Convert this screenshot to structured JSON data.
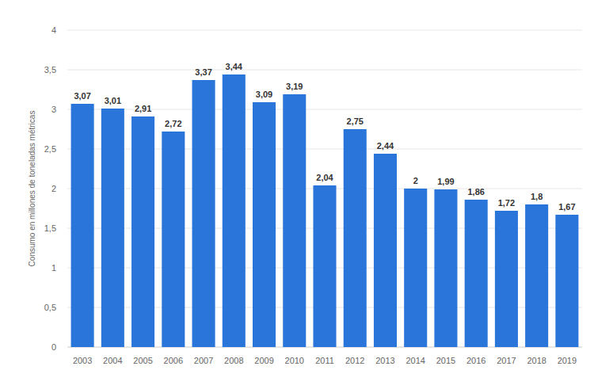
{
  "chart_data": {
    "type": "bar",
    "y_label": "Consumo en millones de toneladas métricas",
    "categories": [
      "2003",
      "2004",
      "2005",
      "2006",
      "2007",
      "2008",
      "2009",
      "2010",
      "2011",
      "2012",
      "2013",
      "2014",
      "2015",
      "2016",
      "2017",
      "2018",
      "2019"
    ],
    "values": [
      3.07,
      3.01,
      2.91,
      2.72,
      3.37,
      3.44,
      3.09,
      3.19,
      2.04,
      2.75,
      2.44,
      2,
      1.99,
      1.86,
      1.72,
      1.8,
      1.67
    ],
    "value_labels": [
      "3,07",
      "3,01",
      "2,91",
      "2,72",
      "3,37",
      "3,44",
      "3,09",
      "3,19",
      "2,04",
      "2,75",
      "2,44",
      "2",
      "1,99",
      "1,86",
      "1,72",
      "1,8",
      "1,67"
    ],
    "color": "#2a75da",
    "ylim": [
      0,
      4
    ],
    "yticks": [
      0,
      {
        "value": 0.5,
        "label": "0,5"
      },
      1,
      {
        "value": 1.5,
        "label": "1,5"
      },
      2,
      {
        "value": 2.5,
        "label": "2,5"
      },
      3,
      {
        "value": 3.5,
        "label": "3,5"
      },
      4
    ],
    "grid": true,
    "data_labels": true
  }
}
